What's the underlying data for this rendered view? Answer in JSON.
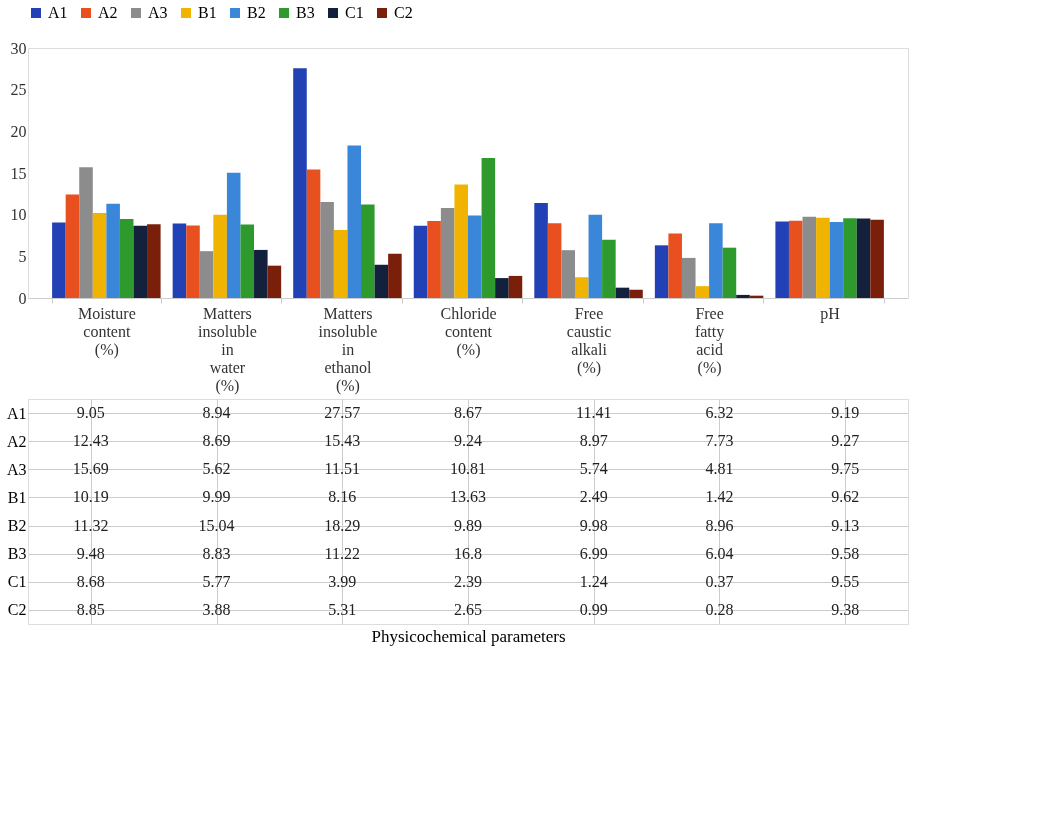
{
  "chart_data": {
    "type": "bar",
    "annotations": [
      "Physicochemical parameters"
    ],
    "categories": [
      "Moisture content (%)",
      "Matters insoluble in water (%)",
      "Matters insoluble in ethanol (%)",
      "Chloride content (%)",
      "Free caustic alkali (%)",
      "Free fatty acid (%)",
      "pH"
    ],
    "series": [
      {
        "name": "A1",
        "color": "#2141b5",
        "values": [
          9.05,
          8.94,
          27.57,
          8.67,
          11.41,
          6.32,
          9.19
        ]
      },
      {
        "name": "A2",
        "color": "#e8501f",
        "values": [
          12.43,
          8.69,
          15.43,
          9.24,
          8.97,
          7.73,
          9.27
        ]
      },
      {
        "name": "A3",
        "color": "#8c8c8c",
        "values": [
          15.69,
          5.62,
          11.51,
          10.81,
          5.74,
          4.81,
          9.75
        ]
      },
      {
        "name": "B1",
        "color": "#f0b400",
        "values": [
          10.19,
          9.99,
          8.16,
          13.63,
          2.49,
          1.42,
          9.62
        ]
      },
      {
        "name": "B2",
        "color": "#3a86d8",
        "values": [
          11.32,
          15.04,
          18.29,
          9.89,
          9.98,
          8.96,
          9.13
        ]
      },
      {
        "name": "B3",
        "color": "#2e9a2e",
        "values": [
          9.48,
          8.83,
          11.22,
          16.8,
          6.99,
          6.04,
          9.58
        ]
      },
      {
        "name": "C1",
        "color": "#14213d",
        "values": [
          8.68,
          5.77,
          3.99,
          2.39,
          1.24,
          0.37,
          9.55
        ]
      },
      {
        "name": "C2",
        "color": "#7a1f0a",
        "values": [
          8.85,
          3.88,
          5.31,
          2.65,
          0.99,
          0.28,
          9.38
        ]
      }
    ],
    "ylim": [
      0,
      30
    ],
    "yticks": [
      0,
      5,
      10,
      15,
      20,
      25,
      30
    ],
    "legend": "top",
    "data_labels": true
  }
}
